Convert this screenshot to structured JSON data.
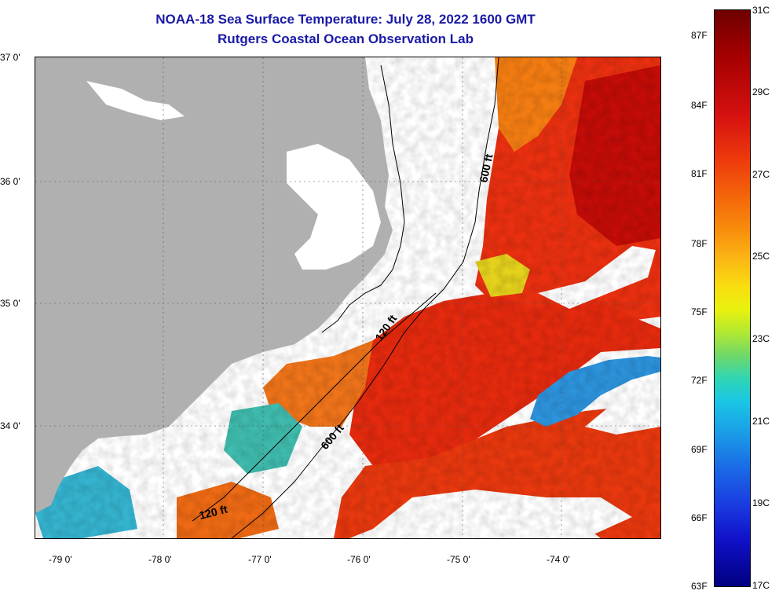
{
  "header": {
    "title": "NOAA-18 Sea Surface Temperature:  July 28, 2022 1600 GMT",
    "subtitle": "Rutgers Coastal Ocean Observation Lab"
  },
  "map": {
    "lat_labels": [
      "37 0'",
      "36 0'",
      "35 0'",
      "34 0'"
    ],
    "lon_labels": [
      "-79 0'",
      "-78 0'",
      "-77 0'",
      "-76 0'",
      "-75 0'",
      "-74 0'"
    ],
    "isobaths": {
      "a": "600 ft",
      "b": "120 ft",
      "c": "600 ft",
      "d": "120 ft"
    },
    "colors": {
      "land": "#b0b0b0",
      "cloud": "#ffffff",
      "warm": "#e8230c",
      "hot": "#c40808",
      "orange": "#f27a12",
      "cold": "#2a9be0"
    }
  },
  "colorbar": {
    "fahrenheit": [
      "87F",
      "84F",
      "81F",
      "78F",
      "75F",
      "72F",
      "69F",
      "66F",
      "63F"
    ],
    "celsius": [
      "31C",
      "29C",
      "27C",
      "25C",
      "23C",
      "21C",
      "19C",
      "17C"
    ]
  }
}
